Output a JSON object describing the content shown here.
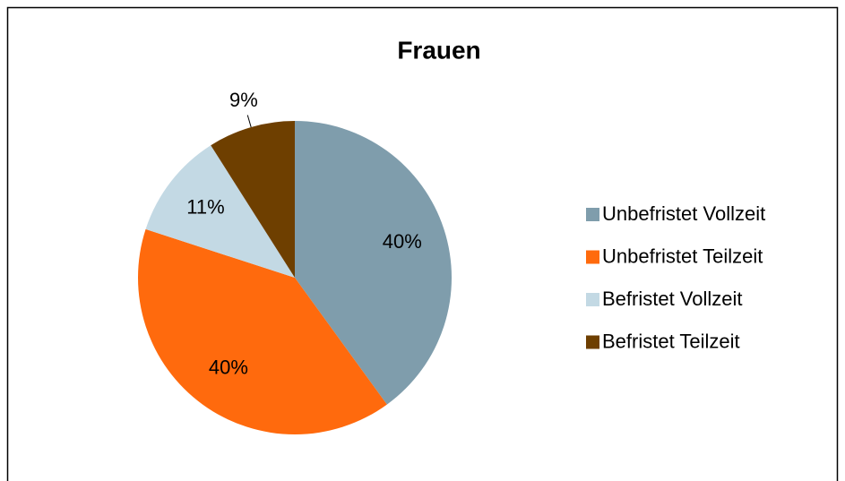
{
  "chart_data": {
    "type": "pie",
    "title": "Frauen",
    "categories": [
      "Unbefristet Vollzeit",
      "Unbefristet Teilzeit",
      "Befristet Vollzeit",
      "Befristet Teilzeit"
    ],
    "values": [
      40,
      40,
      11,
      9
    ],
    "value_labels": [
      "40%",
      "40%",
      "11%",
      "9%"
    ],
    "colors": [
      "#7f9dac",
      "#ff6a0d",
      "#c3d9e4",
      "#6e3f00"
    ],
    "legend": "right"
  }
}
